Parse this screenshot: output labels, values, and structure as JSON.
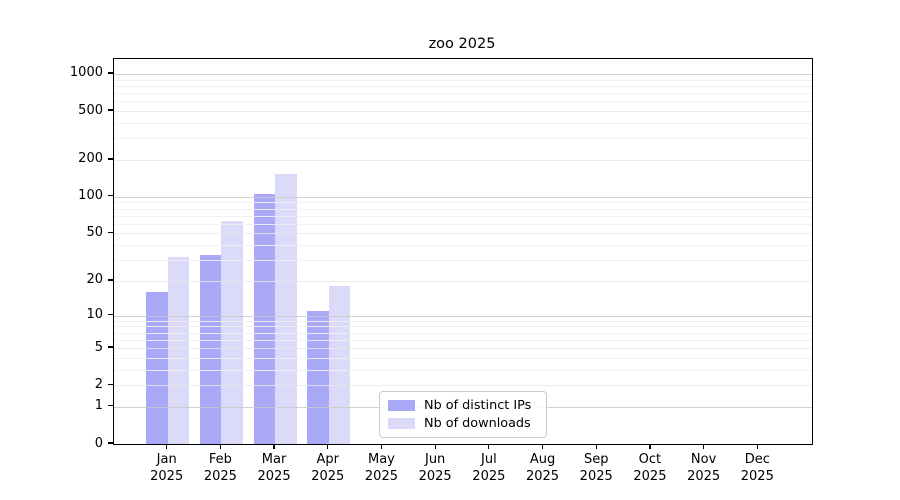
{
  "chart_data": {
    "type": "bar",
    "title": "zoo 2025",
    "categories": [
      "Jan",
      "Feb",
      "Mar",
      "Apr",
      "May",
      "Jun",
      "Jul",
      "Aug",
      "Sep",
      "Oct",
      "Nov",
      "Dec"
    ],
    "x_year_label": "2025",
    "series": [
      {
        "name": "Nb of distinct IPs",
        "color": "#a9a9f7",
        "values": [
          16,
          33,
          105,
          11,
          0,
          0,
          0,
          0,
          0,
          0,
          0,
          0
        ]
      },
      {
        "name": "Nb of downloads",
        "color": "#dbdbf9",
        "values": [
          32,
          63,
          155,
          18,
          0,
          0,
          0,
          0,
          0,
          0,
          0,
          0
        ]
      }
    ],
    "yscale": "log1p",
    "yticks": [
      0,
      1,
      2,
      5,
      10,
      20,
      50,
      100,
      200,
      500,
      1000
    ],
    "minor_yticks": [
      3,
      4,
      6,
      7,
      8,
      9,
      30,
      40,
      60,
      70,
      80,
      90,
      300,
      400,
      600,
      700,
      800,
      900
    ],
    "grid": "horizontal",
    "legend_position": "lower center",
    "colors": {
      "grid_decade": "#c9c9c9",
      "grid_major": "#e7e7e7",
      "grid_minor": "#f0f0f0",
      "axis": "#000000",
      "background": "#ffffff"
    }
  }
}
